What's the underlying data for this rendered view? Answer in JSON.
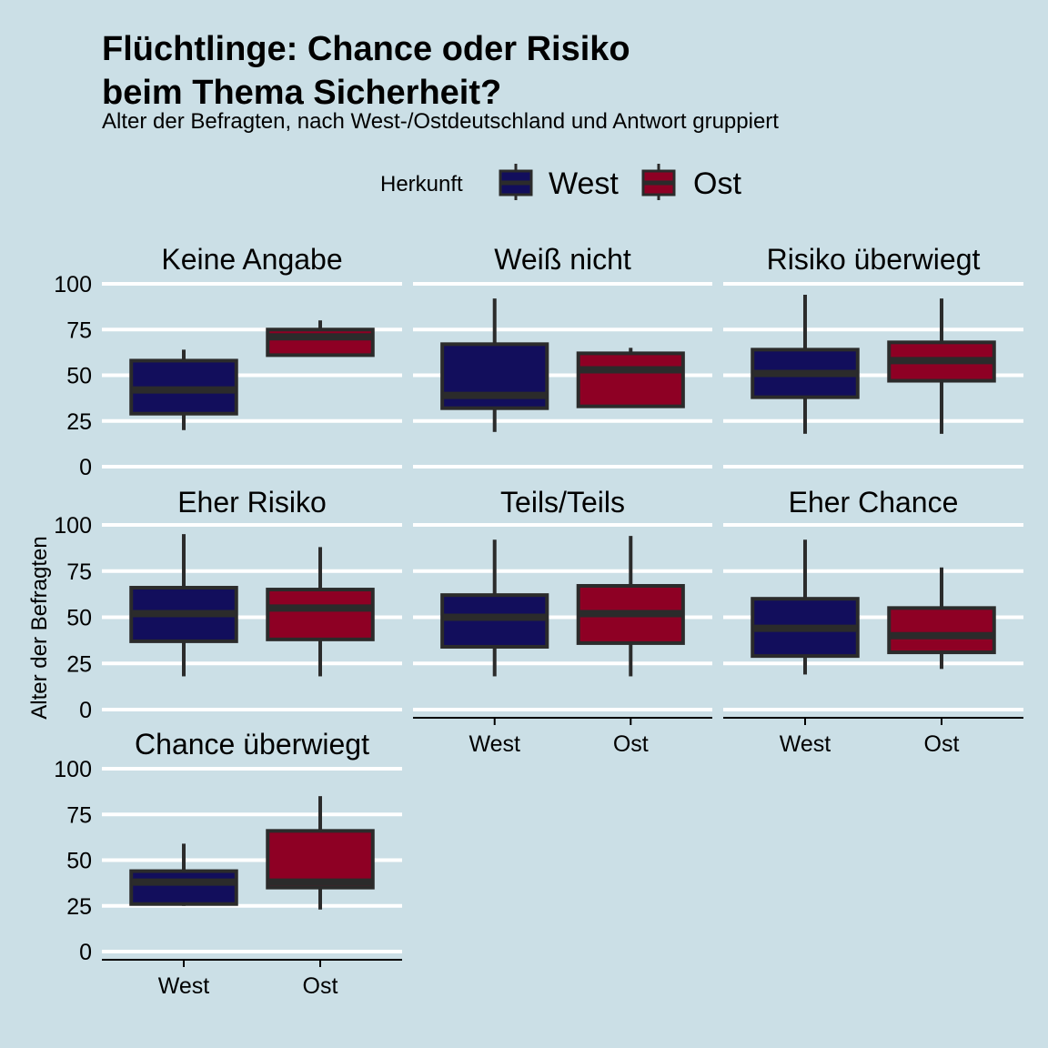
{
  "title_line1": "Flüchtlinge: Chance oder Risiko",
  "title_line2": "beim Thema Sicherheit?",
  "subtitle": "Alter der Befragten, nach West-/Ostdeutschland und Antwort gruppiert",
  "legend": {
    "title": "Herkunft",
    "items": [
      {
        "label": "West",
        "color": "#120e5c"
      },
      {
        "label": "Ost",
        "color": "#8e0024"
      }
    ]
  },
  "ylabel": "Alter der Befragten",
  "colors": {
    "background": "#cbdfe6",
    "grid": "#ffffff",
    "box_line": "#2b2b2b"
  },
  "chart_data": {
    "type": "boxplot",
    "categories": [
      "West",
      "Ost"
    ],
    "ylim": [
      0,
      100
    ],
    "yticks": [
      0,
      25,
      50,
      75,
      100
    ],
    "grid": true,
    "legend_position": "top",
    "facets": [
      {
        "label": "Keine Angabe",
        "boxes": [
          {
            "group": "West",
            "min": 20,
            "q1": 29,
            "median": 42,
            "q3": 58,
            "max": 64
          },
          {
            "group": "Ost",
            "min": 61,
            "q1": 61,
            "median": 71,
            "q3": 75,
            "max": 80
          }
        ]
      },
      {
        "label": "Weiß nicht",
        "boxes": [
          {
            "group": "West",
            "min": 19,
            "q1": 32,
            "median": 39,
            "q3": 67,
            "max": 92
          },
          {
            "group": "Ost",
            "min": 33,
            "q1": 33,
            "median": 53,
            "q3": 62,
            "max": 65
          }
        ]
      },
      {
        "label": "Risiko überwiegt",
        "boxes": [
          {
            "group": "West",
            "min": 18,
            "q1": 38,
            "median": 51,
            "q3": 64,
            "max": 94
          },
          {
            "group": "Ost",
            "min": 18,
            "q1": 47,
            "median": 58,
            "q3": 68,
            "max": 92
          }
        ]
      },
      {
        "label": "Eher Risiko",
        "boxes": [
          {
            "group": "West",
            "min": 18,
            "q1": 37,
            "median": 52,
            "q3": 66,
            "max": 95
          },
          {
            "group": "Ost",
            "min": 18,
            "q1": 38,
            "median": 55,
            "q3": 65,
            "max": 88
          }
        ]
      },
      {
        "label": "Teils/Teils",
        "boxes": [
          {
            "group": "West",
            "min": 18,
            "q1": 34,
            "median": 50,
            "q3": 62,
            "max": 92
          },
          {
            "group": "Ost",
            "min": 18,
            "q1": 36,
            "median": 52,
            "q3": 67,
            "max": 94
          }
        ]
      },
      {
        "label": "Eher Chance",
        "boxes": [
          {
            "group": "West",
            "min": 19,
            "q1": 29,
            "median": 44,
            "q3": 60,
            "max": 92
          },
          {
            "group": "Ost",
            "min": 22,
            "q1": 31,
            "median": 40,
            "q3": 55,
            "max": 77
          }
        ]
      },
      {
        "label": "Chance überwiegt",
        "boxes": [
          {
            "group": "West",
            "min": 25,
            "q1": 26,
            "median": 38,
            "q3": 44,
            "max": 59
          },
          {
            "group": "Ost",
            "min": 23,
            "q1": 35,
            "median": 38,
            "q3": 66,
            "max": 85
          }
        ]
      }
    ]
  }
}
